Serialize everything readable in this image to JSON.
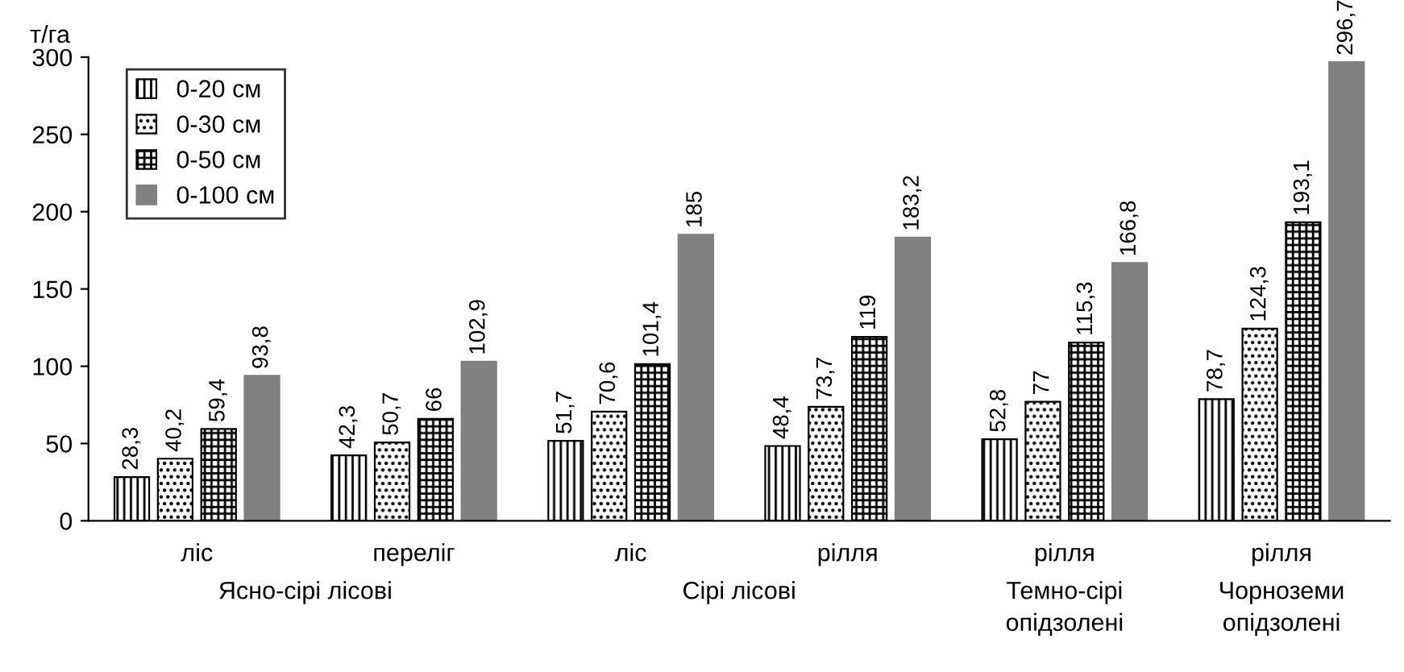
{
  "chart_data": {
    "type": "bar",
    "ylabel": "т/га",
    "categories": [
      "ліс",
      "переліг",
      "ліс",
      "рілля",
      "рілля",
      "рілля"
    ],
    "series": [
      {
        "name": "0-20 см",
        "color": "#000000",
        "values": [
          28.3,
          42.3,
          51.7,
          48.4,
          52.8,
          78.7
        ],
        "value_labels": [
          "28,3",
          "42,3",
          "51,7",
          "48,4",
          "52,8",
          "78,7"
        ]
      },
      {
        "name": "0-30 см",
        "color": "#000000",
        "values": [
          40.2,
          50.7,
          70.6,
          73.7,
          77,
          124.3
        ],
        "value_labels": [
          "40,2",
          "50,7",
          "70,6",
          "73,7",
          "77",
          "124,3"
        ]
      },
      {
        "name": "0-50 см",
        "color": "#000000",
        "values": [
          59.4,
          66,
          101.4,
          119,
          115.3,
          193.1
        ],
        "value_labels": [
          "59,4",
          "66",
          "101,4",
          "119",
          "115,3",
          "193,1"
        ]
      },
      {
        "name": "0-100 см",
        "color": "#808080",
        "values": [
          93.8,
          102.9,
          185,
          183.2,
          166.8,
          296.7
        ],
        "value_labels": [
          "93,8",
          "102,9",
          "185",
          "183,2",
          "166,8",
          "296,7"
        ]
      }
    ],
    "ylim": [
      0,
      300
    ],
    "yticks": [
      0,
      50,
      100,
      150,
      200,
      250,
      300
    ],
    "legend": "top left",
    "annotations": [
      "Ясно-сірі лісові",
      "Сірі лісові",
      "Темно-сірі\nопідзолені",
      "Чорноземи\nопідзолені"
    ]
  }
}
